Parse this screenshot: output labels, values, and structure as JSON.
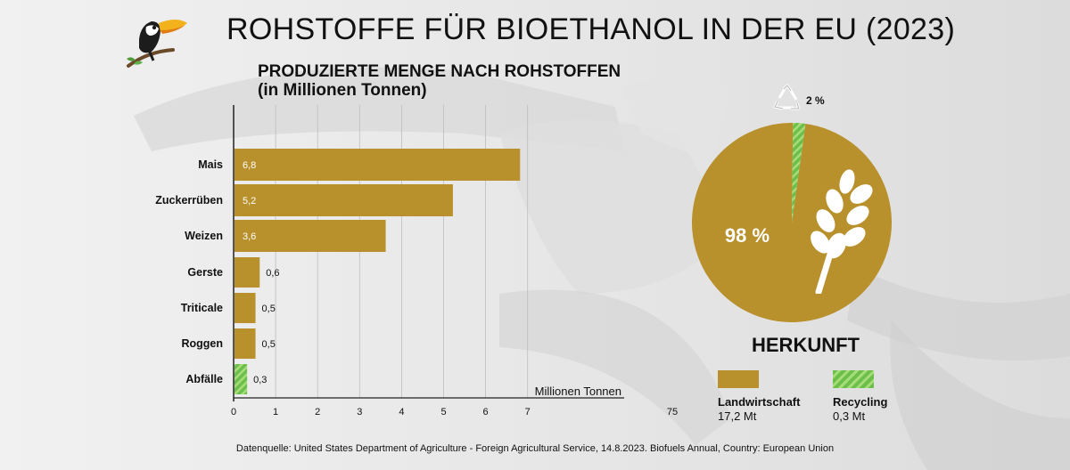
{
  "title": "ROHSTOFFE FÜR BIOETHANOL IN DER EU (2023)",
  "subtitle_line1": "PRODUZIERTE MENGE NACH ROHSTOFFEN",
  "subtitle_line2": "(in Millionen Tonnen)",
  "chart_data": [
    {
      "type": "bar",
      "orientation": "horizontal",
      "categories": [
        "Mais",
        "Zuckerrüben",
        "Weizen",
        "Gerste",
        "Triticale",
        "Roggen",
        "Abfälle"
      ],
      "values": [
        6.8,
        5.2,
        3.6,
        0.6,
        0.5,
        0.5,
        0.3
      ],
      "value_labels": [
        "6,8",
        "5,2",
        "3,6",
        "0,6",
        "0,5",
        "0,5",
        "0,3"
      ],
      "bar_styles": [
        "solid",
        "solid",
        "solid",
        "solid",
        "solid",
        "solid",
        "hatched"
      ],
      "xlabel": "Millionen Tonnen",
      "xticks": [
        "0",
        "1",
        "2",
        "3",
        "4",
        "5",
        "6",
        "7"
      ],
      "extra_tick": "75",
      "xlim": [
        0,
        7
      ],
      "grid": true
    },
    {
      "type": "pie",
      "title": "HERKUNFT",
      "categories": [
        "Landwirtschaft",
        "Recycling"
      ],
      "values": [
        98,
        2
      ],
      "value_labels": [
        "98 %",
        "2 %"
      ],
      "amounts": [
        "17,2 Mt",
        "0,3 Mt"
      ]
    }
  ],
  "colors": {
    "gold": "#b8902c",
    "green": "#6cc04a",
    "green_stripe": "#a7dc7a"
  },
  "icons": [
    "toucan-logo-icon",
    "recycle-icon",
    "wheat-icon"
  ],
  "source": "Datenquelle: United States Department of Agriculture - Foreign Agricultural Service, 14.8.2023. Biofuels Annual, Country: European Union"
}
